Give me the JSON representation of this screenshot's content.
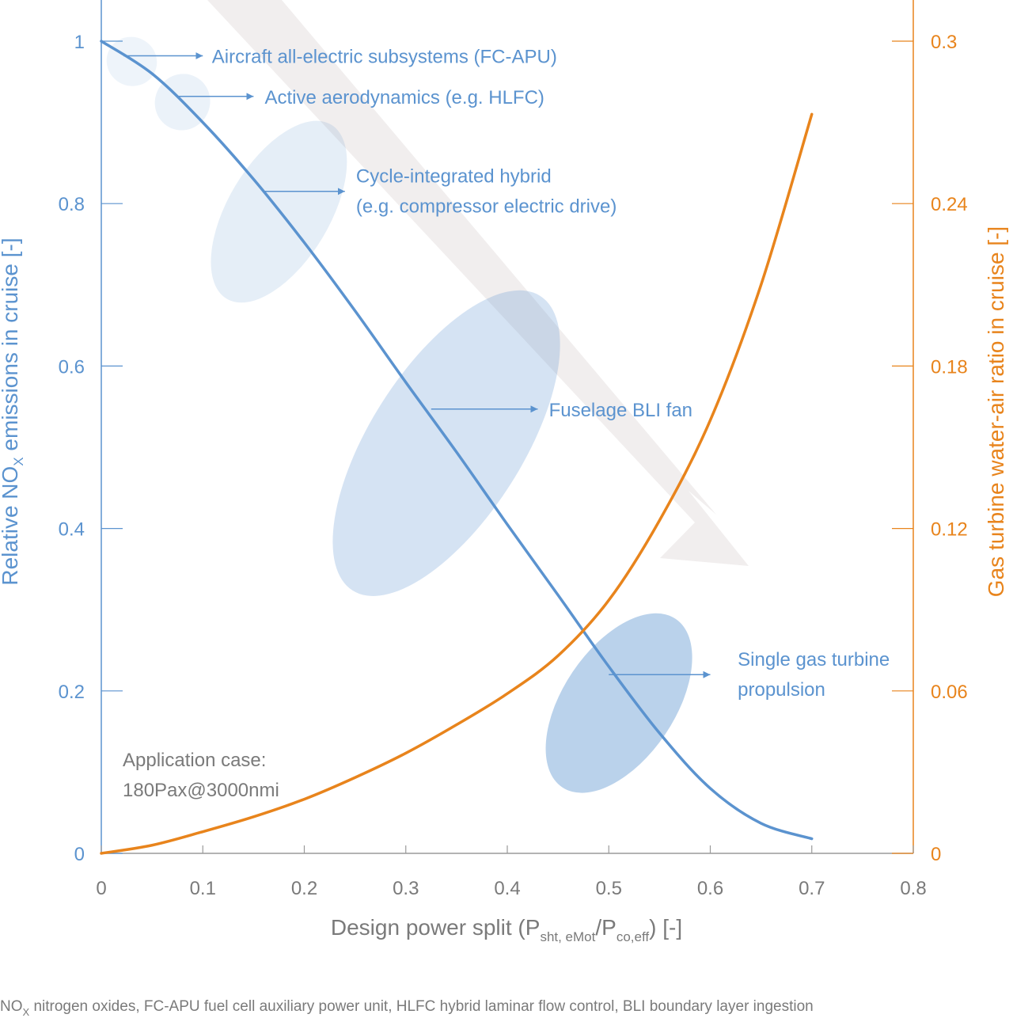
{
  "chart_data": {
    "type": "line",
    "xlabel": {
      "pre": "Design power split (P",
      "sub1": "sht, eMot",
      "mid": "/P",
      "sub2": "co,eff",
      "post": ") [-]"
    },
    "ylabel_left": {
      "pre": "Relative NO",
      "sub": "X",
      "post": " emissions in cruise [-]"
    },
    "ylabel_right": "Gas turbine water-air ratio in cruise [-]",
    "xlim": [
      0,
      0.8
    ],
    "ylim_left": [
      0,
      1
    ],
    "ylim_right": [
      0,
      0.3
    ],
    "x_ticks": [
      "0",
      "0.1",
      "0.2",
      "0.3",
      "0.4",
      "0.5",
      "0.6",
      "0.7",
      "0.8"
    ],
    "y_left_ticks": [
      "0",
      "0.2",
      "0.4",
      "0.6",
      "0.8",
      "1"
    ],
    "y_right_ticks": [
      "0",
      "0.06",
      "0.12",
      "0.18",
      "0.24",
      "0.3"
    ],
    "grid": false,
    "colors": {
      "nox": "#5b93cf",
      "war": "#e8841c",
      "arrow": "#f1eeee",
      "axis_x": "#9a9a9a"
    },
    "series": [
      {
        "axis": "left",
        "x": [
          0,
          0.05,
          0.1,
          0.15,
          0.2,
          0.25,
          0.3,
          0.35,
          0.4,
          0.45,
          0.5,
          0.55,
          0.6,
          0.65,
          0.7
        ],
        "values": [
          1.0,
          0.96,
          0.9,
          0.83,
          0.752,
          0.668,
          0.58,
          0.494,
          0.405,
          0.318,
          0.23,
          0.148,
          0.08,
          0.037,
          0.018
        ]
      },
      {
        "axis": "right",
        "x": [
          0,
          0.05,
          0.1,
          0.15,
          0.2,
          0.25,
          0.3,
          0.35,
          0.4,
          0.45,
          0.5,
          0.55,
          0.6,
          0.65,
          0.7
        ],
        "values": [
          0,
          0.003,
          0.008,
          0.0135,
          0.02,
          0.028,
          0.037,
          0.0475,
          0.059,
          0.073,
          0.0935,
          0.123,
          0.16,
          0.21,
          0.273
        ]
      }
    ],
    "ellipses": [
      {
        "cx": 0.03,
        "cy": 0.975,
        "rx": 0.025,
        "ry": 0.03,
        "opacity": 0.1
      },
      {
        "cx": 0.08,
        "cy": 0.925,
        "rx": 0.027,
        "ry": 0.035,
        "opacity": 0.12
      },
      {
        "cx": 0.175,
        "cy": 0.79,
        "rx": 0.05,
        "ry": 0.125,
        "opacity": 0.16
      },
      {
        "cx": 0.34,
        "cy": 0.505,
        "rx": 0.075,
        "ry": 0.215,
        "opacity": 0.26
      },
      {
        "cx": 0.51,
        "cy": 0.185,
        "rx": 0.055,
        "ry": 0.125,
        "opacity": 0.42
      }
    ],
    "annotations": [
      {
        "lines": [
          "Aircraft all-electric subsystems (FC-APU)"
        ],
        "from": [
          0.022,
          0.982
        ],
        "to": [
          0.1,
          0.982
        ],
        "tx": 0.109,
        "ty": 0.982
      },
      {
        "lines": [
          "Active aerodynamics (e.g. HLFC)"
        ],
        "from": [
          0.075,
          0.932
        ],
        "to": [
          0.15,
          0.932
        ],
        "tx": 0.161,
        "ty": 0.932
      },
      {
        "lines": [
          "Cycle-integrated hybrid",
          "(e.g. compressor electric drive)"
        ],
        "from": [
          0.16,
          0.815
        ],
        "to": [
          0.24,
          0.815
        ],
        "tx": 0.251,
        "ty": 0.835
      },
      {
        "lines": [
          "Fuselage BLI fan"
        ],
        "from": [
          0.325,
          0.547
        ],
        "to": [
          0.43,
          0.547
        ],
        "tx": 0.441,
        "ty": 0.547
      },
      {
        "lines": [
          "Single gas turbine",
          "propulsion"
        ],
        "from": [
          0.5,
          0.22
        ],
        "to": [
          0.6,
          0.22
        ],
        "tx": 0.627,
        "ty": 0.24
      }
    ],
    "text_note": [
      "Application case:",
      "180Pax@3000nmi"
    ],
    "footnote": {
      "sub_pre": "NO",
      "sub": "X",
      "rest": " nitrogen oxides, FC-APU fuel cell auxiliary power unit, HLFC hybrid laminar flow control, BLI boundary layer ingestion"
    }
  }
}
